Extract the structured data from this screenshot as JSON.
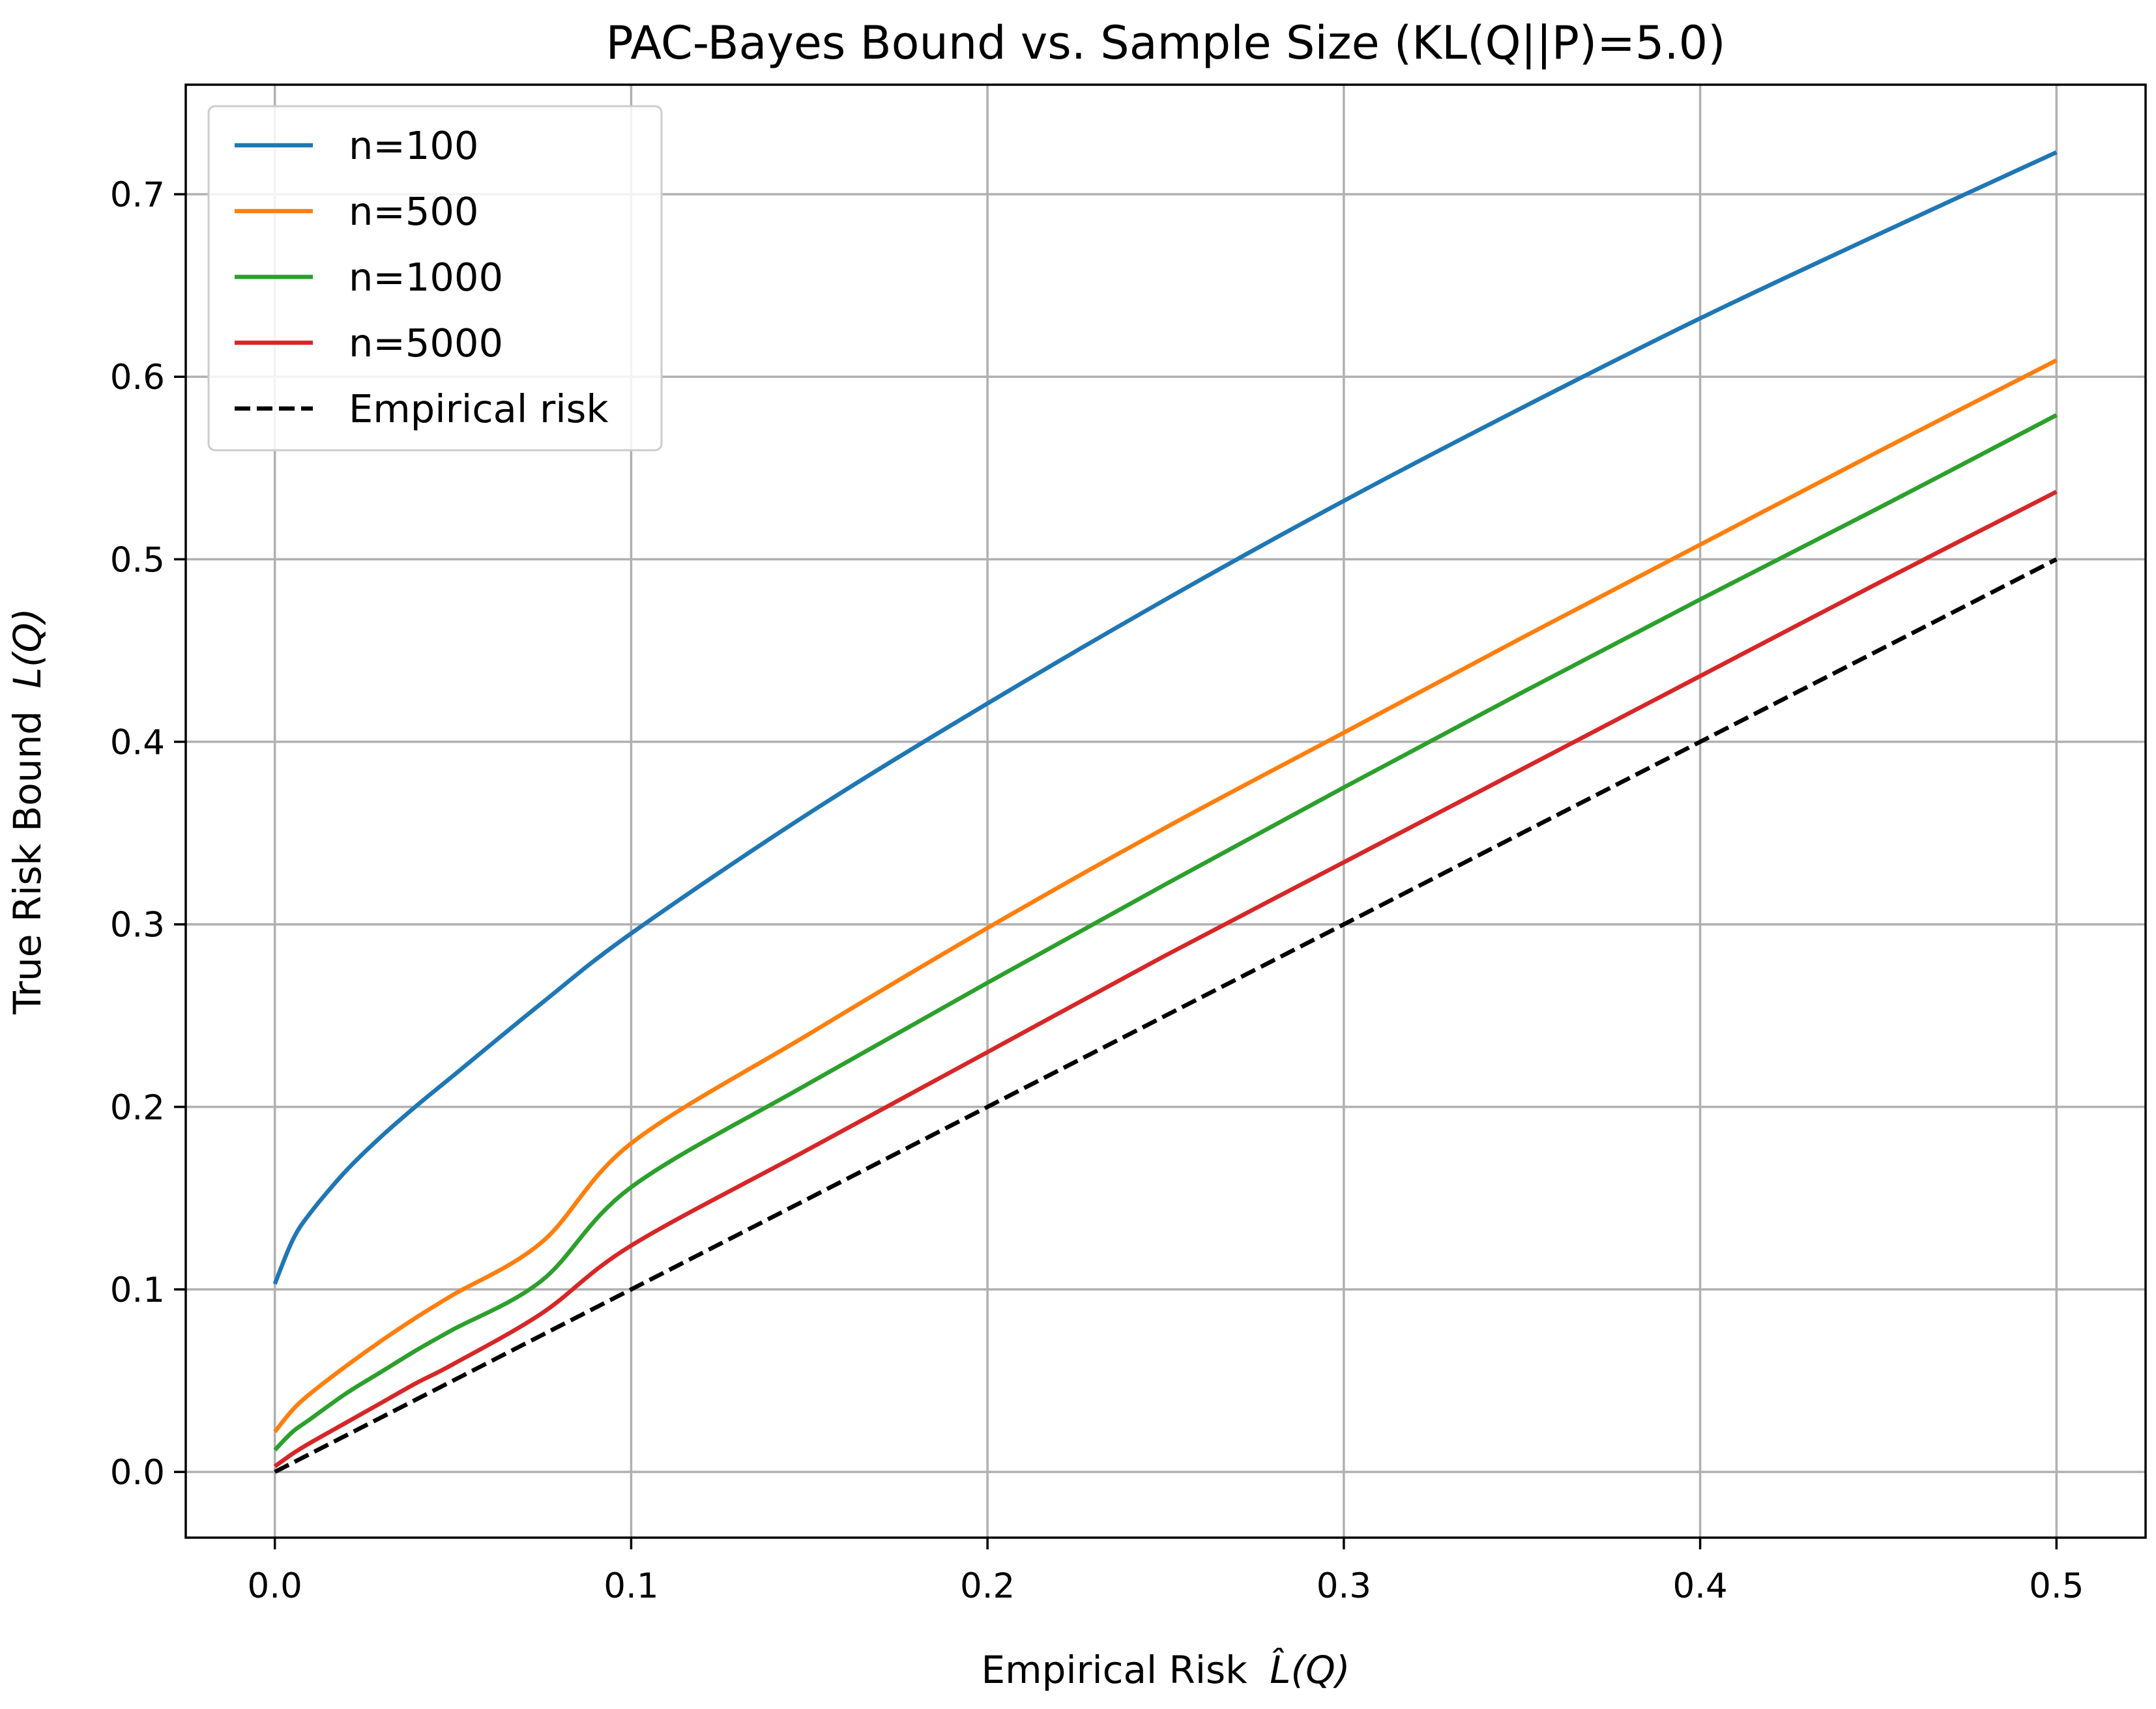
{
  "chart_data": {
    "type": "line",
    "title": "PAC-Bayes Bound vs. Sample Size (KL(Q||P)=5.0)",
    "xlabel": "Empirical Risk",
    "xlabel_math": "L̂(Q)",
    "ylabel": "True Risk Bound",
    "ylabel_math": "L(Q)",
    "xlim": [
      -0.025,
      0.525
    ],
    "ylim": [
      -0.036,
      0.76
    ],
    "xticks": [
      0.0,
      0.1,
      0.2,
      0.3,
      0.4,
      0.5
    ],
    "xtick_labels": [
      "0.0",
      "0.1",
      "0.2",
      "0.3",
      "0.4",
      "0.5"
    ],
    "yticks": [
      0.0,
      0.1,
      0.2,
      0.3,
      0.4,
      0.5,
      0.6,
      0.7
    ],
    "ytick_labels": [
      "0.0",
      "0.1",
      "0.2",
      "0.3",
      "0.4",
      "0.5",
      "0.6",
      "0.7"
    ],
    "grid": true,
    "legend_position": "upper-left",
    "series": [
      {
        "name": "n=100",
        "color": "#1f77b4",
        "dash": "solid",
        "x": [
          0.0,
          0.005,
          0.01,
          0.02,
          0.03,
          0.04,
          0.05,
          0.075,
          0.1,
          0.15,
          0.2,
          0.25,
          0.3,
          0.35,
          0.4,
          0.45,
          0.5
        ],
        "y": [
          0.103,
          0.127,
          0.142,
          0.165,
          0.184,
          0.201,
          0.217,
          0.257,
          0.295,
          0.361,
          0.421,
          0.478,
          0.532,
          0.583,
          0.632,
          0.678,
          0.723
        ]
      },
      {
        "name": "n=500",
        "color": "#ff7f0e",
        "dash": "solid",
        "x": [
          0.0,
          0.005,
          0.01,
          0.02,
          0.03,
          0.04,
          0.05,
          0.075,
          0.1,
          0.15,
          0.2,
          0.25,
          0.3,
          0.35,
          0.4,
          0.45,
          0.5
        ],
        "y": [
          0.022,
          0.034,
          0.043,
          0.058,
          0.072,
          0.085,
          0.097,
          0.126,
          0.18,
          0.24,
          0.298,
          0.353,
          0.405,
          0.457,
          0.508,
          0.559,
          0.609
        ]
      },
      {
        "name": "n=1000",
        "color": "#2ca02c",
        "dash": "solid",
        "x": [
          0.0,
          0.005,
          0.01,
          0.02,
          0.03,
          0.04,
          0.05,
          0.075,
          0.1,
          0.15,
          0.2,
          0.25,
          0.3,
          0.35,
          0.4,
          0.45,
          0.5
        ],
        "y": [
          0.012,
          0.022,
          0.029,
          0.043,
          0.055,
          0.067,
          0.078,
          0.105,
          0.156,
          0.213,
          0.268,
          0.322,
          0.375,
          0.427,
          0.478,
          0.528,
          0.579
        ]
      },
      {
        "name": "n=5000",
        "color": "#d62728",
        "dash": "solid",
        "x": [
          0.0,
          0.005,
          0.01,
          0.02,
          0.03,
          0.04,
          0.05,
          0.075,
          0.1,
          0.15,
          0.2,
          0.25,
          0.3,
          0.35,
          0.4,
          0.45,
          0.5
        ],
        "y": [
          0.003,
          0.01,
          0.016,
          0.027,
          0.038,
          0.049,
          0.059,
          0.087,
          0.124,
          0.177,
          0.23,
          0.283,
          0.334,
          0.385,
          0.436,
          0.487,
          0.537
        ]
      },
      {
        "name": "Empirical risk",
        "color": "#000000",
        "dash": "dashed",
        "x": [
          0.0,
          0.5
        ],
        "y": [
          0.0,
          0.5
        ]
      }
    ]
  }
}
